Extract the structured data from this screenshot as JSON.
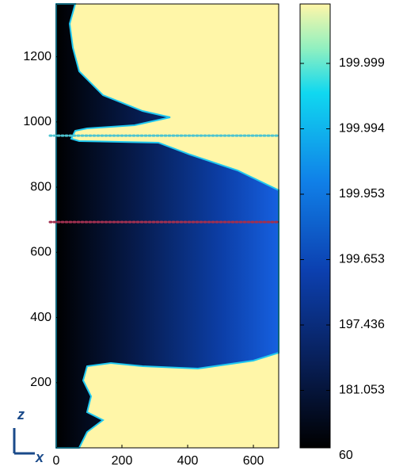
{
  "chart_data": {
    "type": "heatmap",
    "xlabel": "x",
    "ylabel": "z",
    "xlim": [
      0,
      677
    ],
    "xticks": [
      0,
      200,
      400,
      600
    ],
    "ylim": [
      0,
      1362
    ],
    "yticks": [
      200,
      400,
      600,
      800,
      1000,
      1200
    ],
    "colorbar_ticks": [
      60,
      181.053,
      197.436,
      199.653,
      199.953,
      199.994,
      199.999
    ],
    "hlines": [
      {
        "y": 958,
        "color": "#4cc4d0"
      },
      {
        "y": 693,
        "color": "#a03050"
      }
    ]
  }
}
